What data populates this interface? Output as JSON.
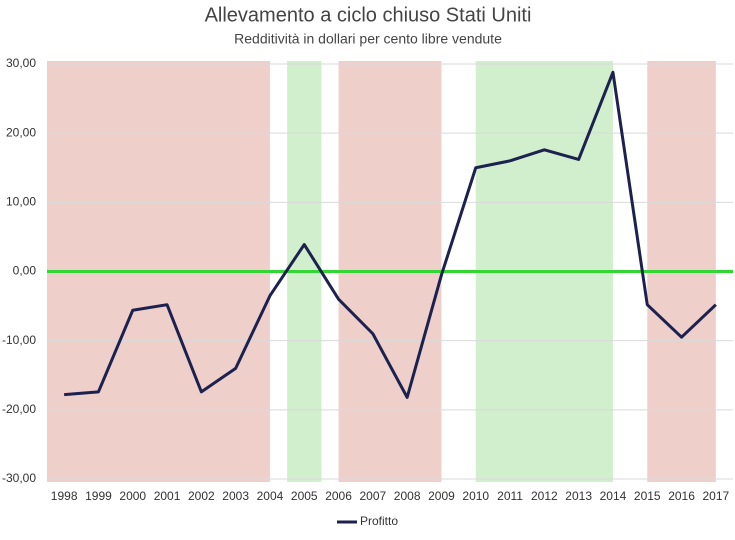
{
  "chart_data": {
    "type": "line",
    "title": "Allevamento a ciclo chiuso Stati Uniti",
    "subtitle": "Redditività in dollari  per cento libre vendute",
    "categories": [
      "1998",
      "1999",
      "2000",
      "2001",
      "2002",
      "2003",
      "2004",
      "2005",
      "2006",
      "2007",
      "2008",
      "2009",
      "2010",
      "2011",
      "2012",
      "2013",
      "2014",
      "2015",
      "2016",
      "2017"
    ],
    "series": [
      {
        "name": "Profitto",
        "color": "#1c2150",
        "values": [
          -17.8,
          -17.4,
          -5.6,
          -4.8,
          -17.4,
          -14,
          -3.5,
          3.9,
          -4,
          -9,
          -18.2,
          -0.5,
          15,
          16,
          17.6,
          16.2,
          28.8,
          -4.8,
          -9.5,
          -4.8
        ]
      }
    ],
    "ylim": [
      -30,
      30
    ],
    "yticks": [
      {
        "value": -30,
        "label": "-30,00"
      },
      {
        "value": -20,
        "label": "-20,00"
      },
      {
        "value": -10,
        "label": "-10,00"
      },
      {
        "value": 0,
        "label": "0,00"
      },
      {
        "value": 10,
        "label": "10,00"
      },
      {
        "value": 20,
        "label": "20,00"
      },
      {
        "value": 30,
        "label": "30,00"
      }
    ],
    "grid": true,
    "reference_line": {
      "value": 0,
      "color": "#33d633"
    },
    "bands": [
      {
        "from": "1998",
        "to": "2004",
        "color": "#efcfca"
      },
      {
        "from": "2005",
        "to": "2005",
        "color": "#d1efcd"
      },
      {
        "from": "2006",
        "to": "2009",
        "color": "#efcfca"
      },
      {
        "from": "2010",
        "to": "2014",
        "color": "#d1efcd"
      },
      {
        "from": "2015",
        "to": "2017",
        "color": "#efcfca"
      }
    ],
    "legend": "bottom"
  }
}
